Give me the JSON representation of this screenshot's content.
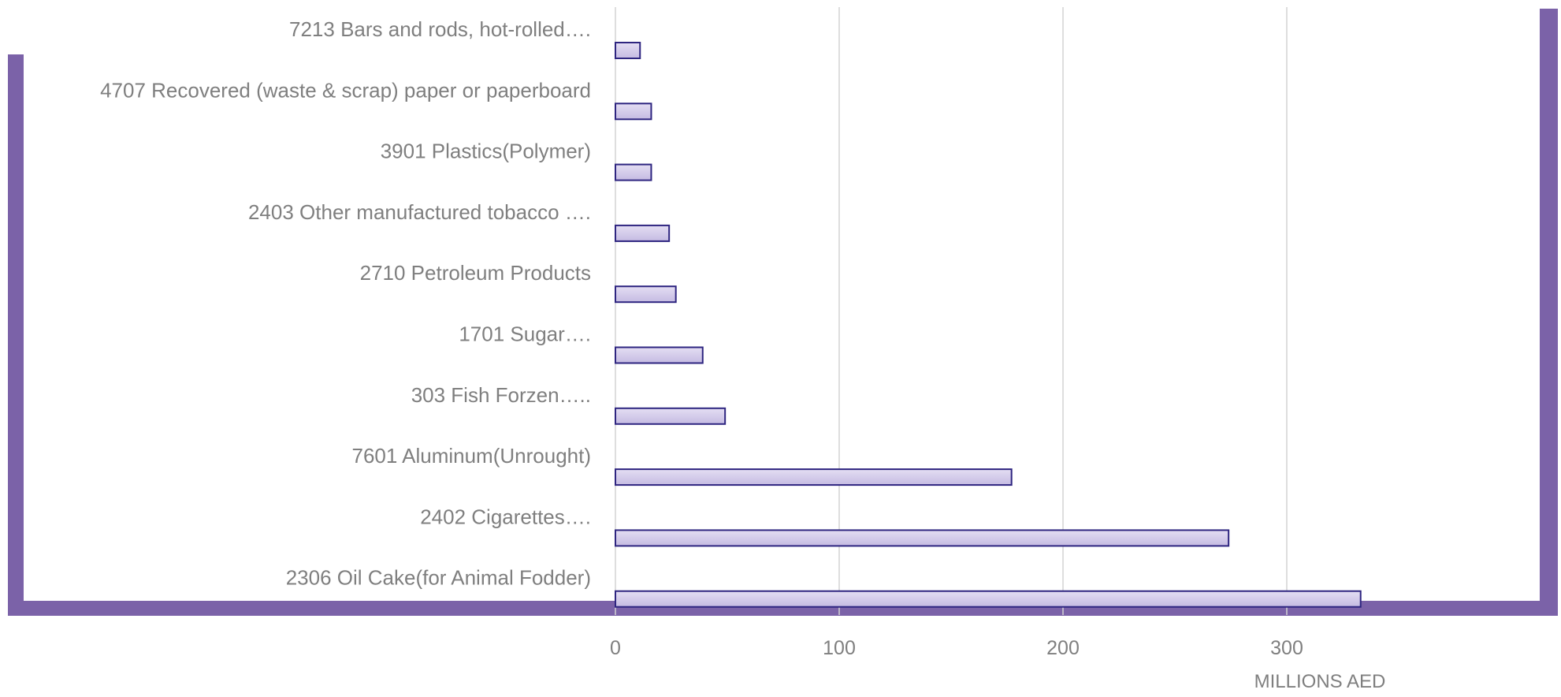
{
  "colors": {
    "frame": "#7b62a8",
    "bar_fill_top": "#e4def3",
    "bar_fill_bottom": "#c5bbe2",
    "bar_stroke": "#2e2580",
    "grid": "#d3d3d3",
    "label": "#7f7f7f"
  },
  "chart_data": {
    "type": "bar",
    "orientation": "horizontal",
    "categories": [
      "7213 Bars and rods, hot-rolled….",
      "4707 Recovered (waste & scrap) paper or paperboard",
      "3901 Plastics(Polymer)",
      "2403 Other manufactured tobacco ….",
      "2710 Petroleum Products",
      "1701 Sugar….",
      "303 Fish Forzen…..",
      "7601 Aluminum(Unrought)",
      "2402 Cigarettes….",
      "2306 Oil Cake(for Animal Fodder)"
    ],
    "values": [
      11,
      16,
      16,
      24,
      27,
      39,
      49,
      177,
      274,
      333
    ],
    "xticks": [
      0,
      100,
      200,
      300
    ],
    "xlim": [
      0,
      415
    ],
    "xlabel": "MILLIONS AED",
    "ylabel": "",
    "title": "",
    "grid": true,
    "legend": "none"
  }
}
